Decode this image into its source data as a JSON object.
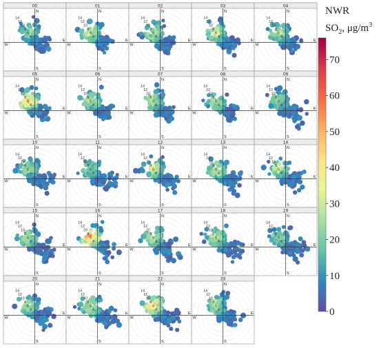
{
  "figure": {
    "panel_labels": [
      "00",
      "01",
      "02",
      "03",
      "04",
      "05",
      "06",
      "07",
      "08",
      "09",
      "10",
      "11",
      "12",
      "13",
      "14",
      "15",
      "16",
      "17",
      "18",
      "19",
      "20",
      "21",
      "22",
      "23"
    ],
    "direction_labels": {
      "north": "N",
      "south": "S",
      "east": "E",
      "west": "W"
    },
    "ring_labels": [
      "4",
      "6",
      "8",
      "10",
      "12",
      "14"
    ]
  },
  "colorbar": {
    "title_line1": "NWR",
    "title_line2_prefix": "SO",
    "title_line2_sub": "2",
    "title_line2_mid": ", μg/m",
    "title_line2_sup": "3",
    "tick_labels": [
      "0",
      "10",
      "20",
      "30",
      "40",
      "50",
      "60",
      "70"
    ],
    "min": 0,
    "max": 76,
    "colors": [
      "#5e4fa2",
      "#3288bd",
      "#66c2a5",
      "#abdda4",
      "#e6f598",
      "#fee08b",
      "#fdae61",
      "#f46d43",
      "#d53e4f",
      "#9e0142"
    ]
  },
  "chart_data": {
    "type": "polar",
    "description_units": "Hourly bivariate polar plots of SO2 concentration (μg/m³) by wind direction and wind speed; radial rings labelled by wind speed.",
    "hours": [
      "00",
      "01",
      "02",
      "03",
      "04",
      "05",
      "06",
      "07",
      "08",
      "09",
      "10",
      "11",
      "12",
      "13",
      "14",
      "15",
      "16",
      "17",
      "18",
      "19",
      "20",
      "21",
      "22",
      "23"
    ],
    "radial_tick_values": [
      4,
      6,
      8,
      10,
      12,
      14
    ],
    "color_scale": {
      "min": 0,
      "max": 76,
      "ticks": [
        0,
        10,
        20,
        30,
        40,
        50,
        60,
        70
      ]
    },
    "approx_peak_concentration_by_hour": [
      22,
      38,
      30,
      35,
      32,
      55,
      30,
      30,
      28,
      24,
      26,
      24,
      35,
      30,
      34,
      28,
      62,
      30,
      32,
      24,
      28,
      34,
      50,
      28
    ]
  }
}
